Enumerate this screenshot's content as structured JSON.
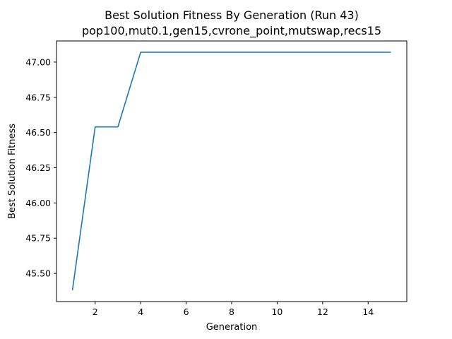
{
  "chart_data": {
    "type": "line",
    "title": "Best Solution Fitness By Generation (Run 43)",
    "subtitle": "pop100,mut0.1,gen15,cvrone_point,mutswap,recs15",
    "xlabel": "Generation",
    "ylabel": "Best Solution Fitness",
    "xlim": [
      0.3,
      15.7
    ],
    "ylim": [
      45.3,
      47.15
    ],
    "x_ticks": [
      2,
      4,
      6,
      8,
      10,
      12,
      14
    ],
    "y_ticks": [
      45.5,
      45.75,
      46.0,
      46.25,
      46.5,
      46.75,
      47.0
    ],
    "grid": false,
    "series": [
      {
        "color": "#1f77b4",
        "x": [
          1,
          2,
          3,
          4,
          5,
          6,
          7,
          8,
          9,
          10,
          11,
          12,
          13,
          14,
          15
        ],
        "values": [
          45.38,
          46.54,
          46.54,
          47.07,
          47.07,
          47.07,
          47.07,
          47.07,
          47.07,
          47.07,
          47.07,
          47.07,
          47.07,
          47.07,
          47.07
        ]
      }
    ]
  }
}
